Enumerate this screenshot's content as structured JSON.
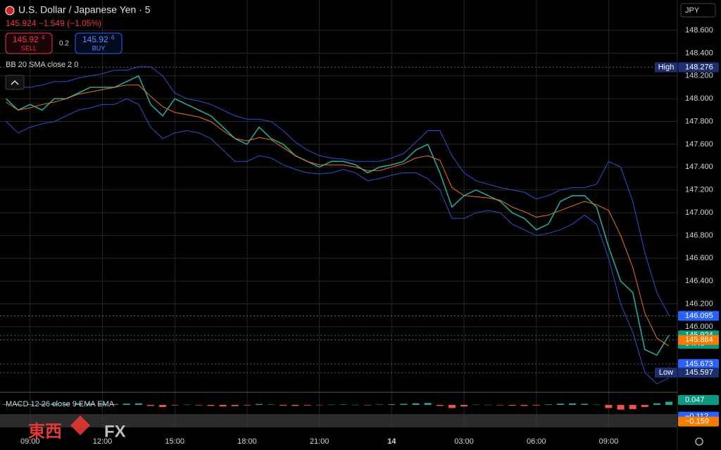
{
  "header": {
    "title": "U.S. Dollar / Japanese Yen · 5",
    "change": "145.924 −1.549 (−1.05%)",
    "currency": "JPY"
  },
  "trade": {
    "sell_price": "145.92",
    "sell_pip": "4",
    "sell_label": "SELL",
    "spread": "0.2",
    "buy_price": "145.92",
    "buy_pip": "6",
    "buy_label": "BUY"
  },
  "indicators": {
    "bb": "BB 20 SMA close 2 0",
    "macd": "MACD 12 26 close 9 EMA EMA"
  },
  "watermark": {
    "left": "東西",
    "right": "FX"
  },
  "chart_data": {
    "type": "line",
    "grid": true,
    "xlim": [
      -0.5,
      55.7
    ],
    "xticks": [
      {
        "value": 2,
        "label": "09:00"
      },
      {
        "value": 8,
        "label": "12:00"
      },
      {
        "value": 14,
        "label": "15:00"
      },
      {
        "value": 20,
        "label": "18:00"
      },
      {
        "value": 26,
        "label": "21:00"
      },
      {
        "value": 32,
        "label": "14"
      },
      {
        "value": 38,
        "label": "03:00"
      },
      {
        "value": 44,
        "label": "06:00"
      },
      {
        "value": 50,
        "label": "09:00"
      }
    ],
    "ylim": [
      145.425,
      148.866
    ],
    "yticks": [
      {
        "value": 148.6,
        "label": "148.600"
      },
      {
        "value": 148.4,
        "label": "148.400"
      },
      {
        "value": 148.2,
        "label": "148.200"
      },
      {
        "value": 148.0,
        "label": "148.000"
      },
      {
        "value": 147.8,
        "label": "147.800"
      },
      {
        "value": 147.6,
        "label": "147.600"
      },
      {
        "value": 147.4,
        "label": "147.400"
      },
      {
        "value": 147.2,
        "label": "147.200"
      },
      {
        "value": 147.0,
        "label": "147.000"
      },
      {
        "value": 146.8,
        "label": "146.800"
      },
      {
        "value": 146.6,
        "label": "146.600"
      },
      {
        "value": 146.4,
        "label": "146.400"
      },
      {
        "value": 146.2,
        "label": "146.200"
      },
      {
        "value": 146.0,
        "label": "146.000"
      }
    ],
    "series": [
      {
        "color": "#26a69a",
        "width": 1.6,
        "values": [
          148.0,
          147.9,
          147.95,
          147.9,
          148.0,
          148.0,
          148.05,
          148.1,
          148.1,
          148.1,
          148.15,
          148.2,
          147.95,
          147.85,
          148.0,
          147.95,
          147.9,
          147.85,
          147.75,
          147.65,
          147.6,
          147.75,
          147.65,
          147.6,
          147.5,
          147.45,
          147.4,
          147.45,
          147.45,
          147.42,
          147.35,
          147.4,
          147.42,
          147.45,
          147.55,
          147.6,
          147.35,
          147.05,
          147.15,
          147.2,
          147.15,
          147.1,
          147.0,
          146.95,
          146.85,
          146.9,
          147.1,
          147.15,
          147.15,
          147.05,
          146.7,
          146.4,
          146.3,
          145.8,
          145.75,
          145.924
        ]
      },
      {
        "color": "#2e4fd1",
        "width": 1,
        "values": [
          148.15,
          148.1,
          148.1,
          148.12,
          148.15,
          148.15,
          148.18,
          148.2,
          148.22,
          148.25,
          148.25,
          148.28,
          148.28,
          148.2,
          148.05,
          148.0,
          147.98,
          147.95,
          147.9,
          147.85,
          147.82,
          147.82,
          147.8,
          147.72,
          147.62,
          147.55,
          147.5,
          147.48,
          147.47,
          147.45,
          147.45,
          147.45,
          147.48,
          147.52,
          147.62,
          147.72,
          147.72,
          147.5,
          147.35,
          147.28,
          147.25,
          147.22,
          147.2,
          147.18,
          147.12,
          147.15,
          147.2,
          147.22,
          147.22,
          147.25,
          147.45,
          147.4,
          147.1,
          146.65,
          146.3,
          146.1
        ]
      },
      {
        "color": "#2e4fd1",
        "width": 1,
        "values": [
          147.8,
          147.7,
          147.75,
          147.78,
          147.8,
          147.85,
          147.9,
          147.92,
          147.95,
          147.95,
          148.0,
          147.95,
          147.75,
          147.65,
          147.7,
          147.72,
          147.7,
          147.65,
          147.55,
          147.45,
          147.45,
          147.5,
          147.48,
          147.42,
          147.38,
          147.35,
          147.34,
          147.35,
          147.38,
          147.35,
          147.28,
          147.3,
          147.33,
          147.35,
          147.35,
          147.3,
          147.2,
          146.95,
          146.95,
          147.0,
          147.02,
          147.0,
          146.9,
          146.85,
          146.8,
          146.82,
          146.85,
          146.9,
          146.98,
          146.9,
          146.6,
          146.2,
          145.95,
          145.6,
          145.5,
          145.55
        ]
      },
      {
        "color": "#e8741c",
        "width": 1,
        "values": [
          147.97,
          147.9,
          147.92,
          147.95,
          147.97,
          148.0,
          148.04,
          148.06,
          148.08,
          148.1,
          148.12,
          148.12,
          148.02,
          147.93,
          147.88,
          147.86,
          147.84,
          147.8,
          147.72,
          147.65,
          147.63,
          147.66,
          147.64,
          147.57,
          147.5,
          147.45,
          147.42,
          147.42,
          147.42,
          147.4,
          147.37,
          147.37,
          147.4,
          147.43,
          147.48,
          147.5,
          147.46,
          147.22,
          147.15,
          147.14,
          147.13,
          147.11,
          147.05,
          147.01,
          146.96,
          146.98,
          147.02,
          147.06,
          147.1,
          147.07,
          147.02,
          146.8,
          146.52,
          146.12,
          145.9,
          145.83
        ]
      }
    ],
    "price_labels": [
      {
        "label": "High",
        "value": 148.276,
        "color": "#1c2f6e"
      },
      {
        "value": 146.095,
        "color": "#2962ff"
      },
      {
        "value": 145.924,
        "color": "#089981",
        "sub": "04:46"
      },
      {
        "value": 145.884,
        "color": "#f57c00"
      },
      {
        "value": 145.673,
        "color": "#2962ff"
      },
      {
        "label": "Low",
        "value": 145.597,
        "color": "#1c2f6e"
      }
    ],
    "macd": {
      "ylim": [
        -0.209,
        0.114
      ],
      "histogram": [
        0.005,
        0.008,
        0.006,
        0.01,
        0.012,
        0.01,
        0.015,
        0.012,
        0.01,
        0.008,
        0.012,
        0.015,
        -0.01,
        -0.02,
        -0.005,
        0.002,
        -0.005,
        -0.01,
        -0.015,
        -0.012,
        -0.005,
        0.008,
        0.003,
        -0.008,
        -0.01,
        -0.006,
        -0.003,
        0.002,
        0.004,
        0.001,
        -0.004,
        0.003,
        0.006,
        0.01,
        0.015,
        0.018,
        -0.01,
        -0.03,
        -0.015,
        0.002,
        0.001,
        -0.004,
        -0.008,
        -0.01,
        -0.006,
        0.005,
        0.012,
        0.014,
        0.01,
        0.002,
        -0.03,
        -0.045,
        -0.04,
        -0.02,
        0.015,
        0.03
      ],
      "labels": [
        {
          "value": 0.047,
          "color": "#089981"
        },
        {
          "value": -0.112,
          "label": "−0.112",
          "color": "#2962ff"
        },
        {
          "value": -0.159,
          "label": "−0.159",
          "color": "#f57c00"
        }
      ]
    }
  }
}
